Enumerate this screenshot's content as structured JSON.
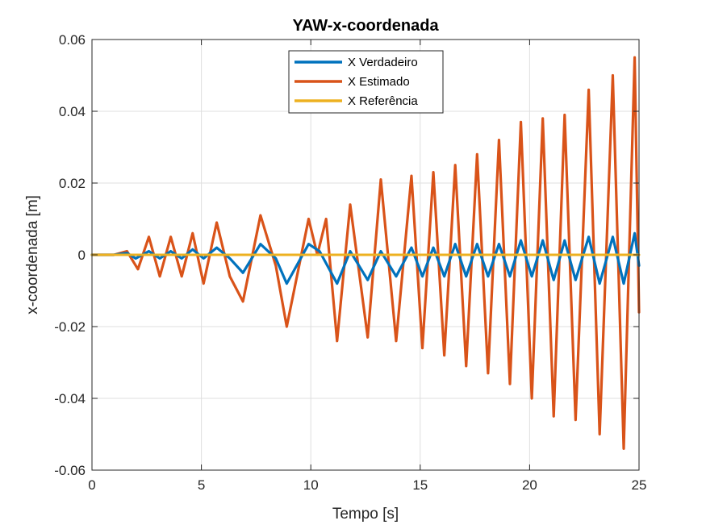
{
  "chart_data": {
    "type": "line",
    "title": "YAW-x-coordenada",
    "xlabel": "Tempo [s]",
    "ylabel": "x-coordenada [m]",
    "xlim": [
      0,
      25
    ],
    "ylim": [
      -0.06,
      0.06
    ],
    "grid": true,
    "legend_position": "top-center",
    "x_ticks": [
      0,
      5,
      10,
      15,
      20,
      25
    ],
    "x_tick_labels": [
      "0",
      "5",
      "10",
      "15",
      "20",
      "25"
    ],
    "y_ticks": [
      -0.06,
      -0.04,
      -0.02,
      0,
      0.02,
      0.04,
      0.06
    ],
    "y_tick_labels": [
      "-0.06",
      "-0.04",
      "-0.02",
      "0",
      "0.02",
      "0.04",
      "0.06"
    ],
    "series": [
      {
        "name": "X Verdadeiro",
        "color": "#0072BD",
        "x": [
          0,
          1,
          1.6,
          2.0,
          2.6,
          3.1,
          3.6,
          4.1,
          4.6,
          5.1,
          5.7,
          6.3,
          6.9,
          7.7,
          8.4,
          8.9,
          9.9,
          10.4,
          11.2,
          11.8,
          12.6,
          13.2,
          13.9,
          14.6,
          15.1,
          15.6,
          16.1,
          16.6,
          17.1,
          17.6,
          18.1,
          18.6,
          19.1,
          19.6,
          20.1,
          20.6,
          21.1,
          21.6,
          22.1,
          22.7,
          23.2,
          23.8,
          24.3,
          24.8,
          25.0
        ],
        "y": [
          0,
          0,
          0.0005,
          -0.001,
          0.001,
          -0.001,
          0.001,
          -0.001,
          0.0015,
          -0.001,
          0.002,
          -0.001,
          -0.005,
          0.003,
          -0.001,
          -0.008,
          0.003,
          0.001,
          -0.008,
          0.001,
          -0.007,
          0.001,
          -0.006,
          0.002,
          -0.006,
          0.002,
          -0.006,
          0.003,
          -0.006,
          0.003,
          -0.006,
          0.003,
          -0.006,
          0.004,
          -0.006,
          0.004,
          -0.007,
          0.004,
          -0.007,
          0.005,
          -0.008,
          0.005,
          -0.008,
          0.006,
          -0.003
        ]
      },
      {
        "name": "X Estimado",
        "color": "#D95319",
        "x": [
          0,
          1,
          1.6,
          2.1,
          2.6,
          3.1,
          3.6,
          4.1,
          4.6,
          5.1,
          5.7,
          6.3,
          6.9,
          7.7,
          8.4,
          8.9,
          9.9,
          10.3,
          10.7,
          11.2,
          11.8,
          12.6,
          13.2,
          13.9,
          14.6,
          15.1,
          15.6,
          16.1,
          16.6,
          17.1,
          17.6,
          18.1,
          18.6,
          19.1,
          19.6,
          20.1,
          20.6,
          21.1,
          21.6,
          22.1,
          22.7,
          23.2,
          23.8,
          24.3,
          24.8,
          25.0
        ],
        "y": [
          0,
          0,
          0.001,
          -0.004,
          0.005,
          -0.006,
          0.005,
          -0.006,
          0.006,
          -0.008,
          0.009,
          -0.006,
          -0.013,
          0.011,
          -0.003,
          -0.02,
          0.01,
          0.0,
          0.01,
          -0.024,
          0.014,
          -0.023,
          0.021,
          -0.024,
          0.022,
          -0.026,
          0.023,
          -0.028,
          0.025,
          -0.031,
          0.028,
          -0.033,
          0.032,
          -0.036,
          0.037,
          -0.04,
          0.038,
          -0.045,
          0.039,
          -0.046,
          0.046,
          -0.05,
          0.05,
          -0.054,
          0.055,
          -0.016
        ]
      },
      {
        "name": "X Referência",
        "color": "#EDB120",
        "x": [
          0,
          25
        ],
        "y": [
          0,
          0
        ]
      }
    ]
  }
}
